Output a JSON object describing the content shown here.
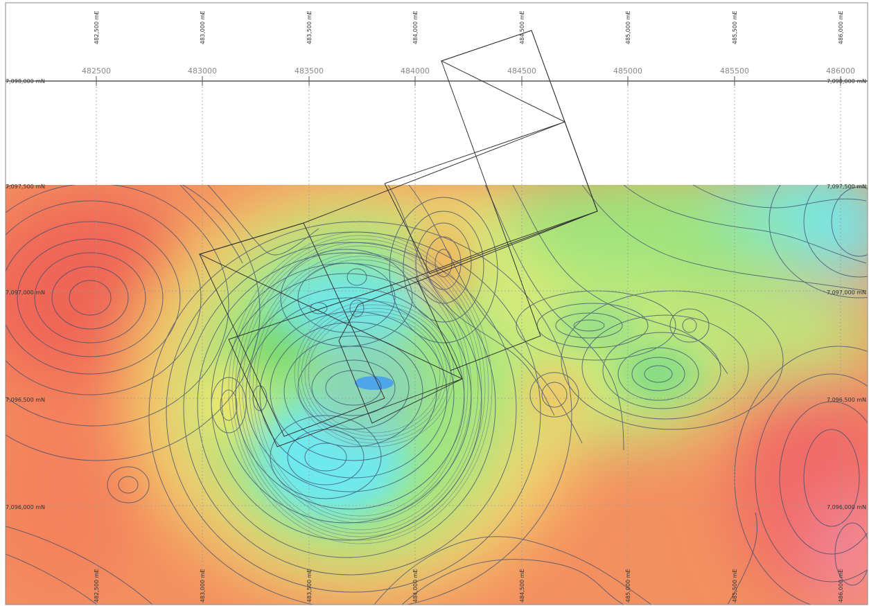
{
  "map": {
    "easting_top_labels": [
      "482,500 mE",
      "483,000 mE",
      "483,500 mE",
      "484,000 mE",
      "484,500 mE",
      "485,000 mE",
      "485,500 mE",
      "486,000 mE"
    ],
    "easting_bottom_labels": [
      "482,500 mE",
      "483,000 mE",
      "483,500 mE",
      "484,000 mE",
      "484,500 mE",
      "485,000 mE",
      "485,500 mE",
      "486,000 mE"
    ],
    "easting_plain_labels": [
      "482500",
      "483000",
      "483500",
      "484000",
      "484500",
      "485000",
      "485500",
      "486000"
    ],
    "northing_left_labels": [
      "7,098,000 mN",
      "7,097,500 mN",
      "7,097,000 mN",
      "7,096,500 mN",
      "7,096,000 mN"
    ],
    "northing_right_labels": [
      "7,098,000 mN",
      "7,097,500 mN",
      "7,097,000 mN",
      "7,096,500 mN",
      "7,096,000 mN"
    ],
    "colors": {
      "low": "#f06a5a",
      "mid_orange": "#f5a85e",
      "mid_yellow": "#f4ee7a",
      "mid_green": "#8fe37e",
      "high_cyan": "#6eeaf2",
      "peak_blue": "#4ea6e8",
      "contour": "#3a4a70",
      "grid_line": "#9a9a9a"
    }
  }
}
